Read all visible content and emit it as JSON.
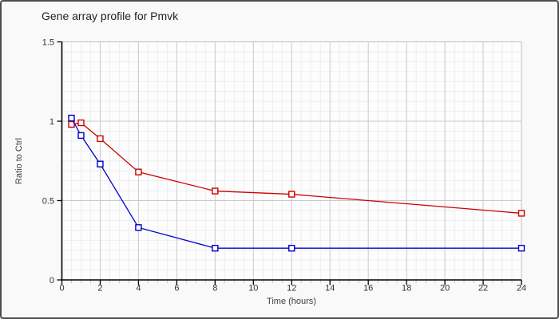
{
  "chart_data": {
    "type": "line",
    "title": "Gene array profile for Pmvk",
    "xlabel": "Time (hours)",
    "ylabel": "Ratio to Ctrl",
    "xlim": [
      0,
      24
    ],
    "ylim": [
      0,
      1.5
    ],
    "x_ticks": [
      0,
      2,
      4,
      6,
      8,
      10,
      12,
      14,
      16,
      18,
      20,
      22,
      24
    ],
    "y_ticks": [
      0,
      0.5,
      1,
      1.5
    ],
    "x_minor_step": 0.5,
    "y_minor_step": 0.0625,
    "grid": true,
    "legend": "none",
    "marker": "open-square",
    "x": [
      0.5,
      1,
      2,
      4,
      8,
      12,
      24
    ],
    "series": [
      {
        "name": "series-red",
        "color": "#cc0000",
        "values": [
          0.98,
          0.99,
          0.89,
          0.68,
          0.56,
          0.54,
          0.42
        ]
      },
      {
        "name": "series-blue",
        "color": "#0000cc",
        "values": [
          1.02,
          0.91,
          0.73,
          0.33,
          0.2,
          0.2,
          0.2
        ]
      }
    ]
  }
}
